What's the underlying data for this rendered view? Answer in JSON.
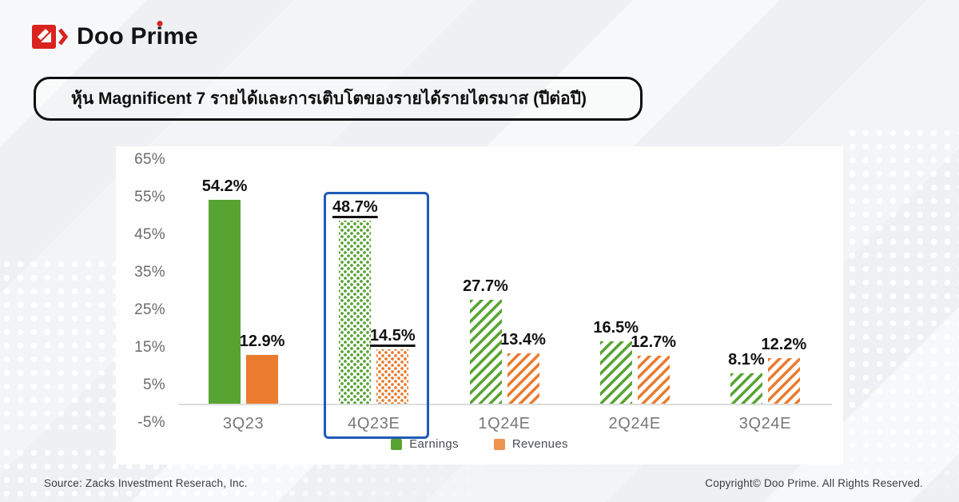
{
  "brand": {
    "name": "Doo Prime",
    "name_parts": [
      "Doo Pr",
      "i",
      "me"
    ],
    "logo_red": "#d8231f"
  },
  "title_banner": "หุ้น Magnificent 7 รายได้และการเติบโตของรายได้รายไตรมาส (ปีต่อปี)",
  "footer": {
    "source": "Source: Zacks Investment Reserach, Inc.",
    "copyright": "Copyright© Doo Prime. All Rights Reserved."
  },
  "chart_data": {
    "type": "bar",
    "title": "Magnificent 7 quarterly earnings and revenue growth (YoY)",
    "categories": [
      "3Q23",
      "4Q23E",
      "1Q24E",
      "2Q24E",
      "3Q24E"
    ],
    "series": [
      {
        "name": "Earnings",
        "color": "#58a433",
        "values": [
          54.2,
          48.7,
          27.7,
          16.5,
          8.1
        ]
      },
      {
        "name": "Revenues",
        "color": "#eb7b2e",
        "values": [
          12.9,
          14.5,
          13.4,
          12.7,
          12.2
        ]
      }
    ],
    "value_suffix": "%",
    "bar_styles": [
      "solid",
      "dots",
      "hatch",
      "hatch",
      "hatch"
    ],
    "highlight_index": 1,
    "highlight_category": "4Q23E",
    "highlight_color": "#1e5bb8",
    "y_ticks": [
      "65%",
      "55%",
      "45%",
      "35%",
      "25%",
      "15%",
      "5%",
      "-5%"
    ],
    "y_tick_values": [
      65,
      55,
      45,
      35,
      25,
      15,
      5,
      -5
    ],
    "ylim": [
      -5,
      65
    ],
    "grid": false,
    "legend_position": "bottom",
    "legend": [
      "Earnings",
      "Revenues"
    ],
    "legend_colors": [
      "#58a433",
      "#f0924f"
    ]
  }
}
